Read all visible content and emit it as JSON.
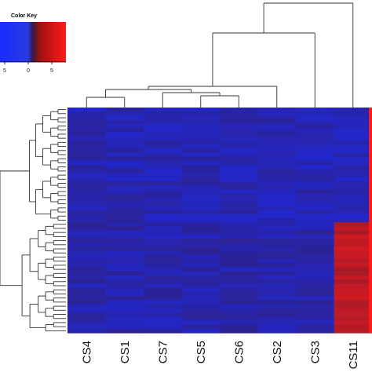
{
  "chart_data": {
    "type": "heatmap",
    "title": "",
    "xlabel": "",
    "ylabel": "",
    "color_key": {
      "title": "Color Key",
      "tick_labels": [
        "5",
        "0",
        "5"
      ],
      "range": [
        -7,
        7
      ],
      "colors": {
        "low": "#1a2cff",
        "mid": "#3a1a3a",
        "high": "#ff1a1a"
      }
    },
    "columns": [
      "CS4",
      "CS1",
      "CS7",
      "CS5",
      "CS6",
      "CS2",
      "CS3",
      "CS11"
    ],
    "row_groups": [
      {
        "rows": 28,
        "cs11_value": -4.5,
        "base": -4.3
      },
      {
        "rows": 27,
        "cs11_value": 4.6,
        "base": -4.0
      }
    ],
    "grid": false,
    "legend_position": "top-left"
  }
}
